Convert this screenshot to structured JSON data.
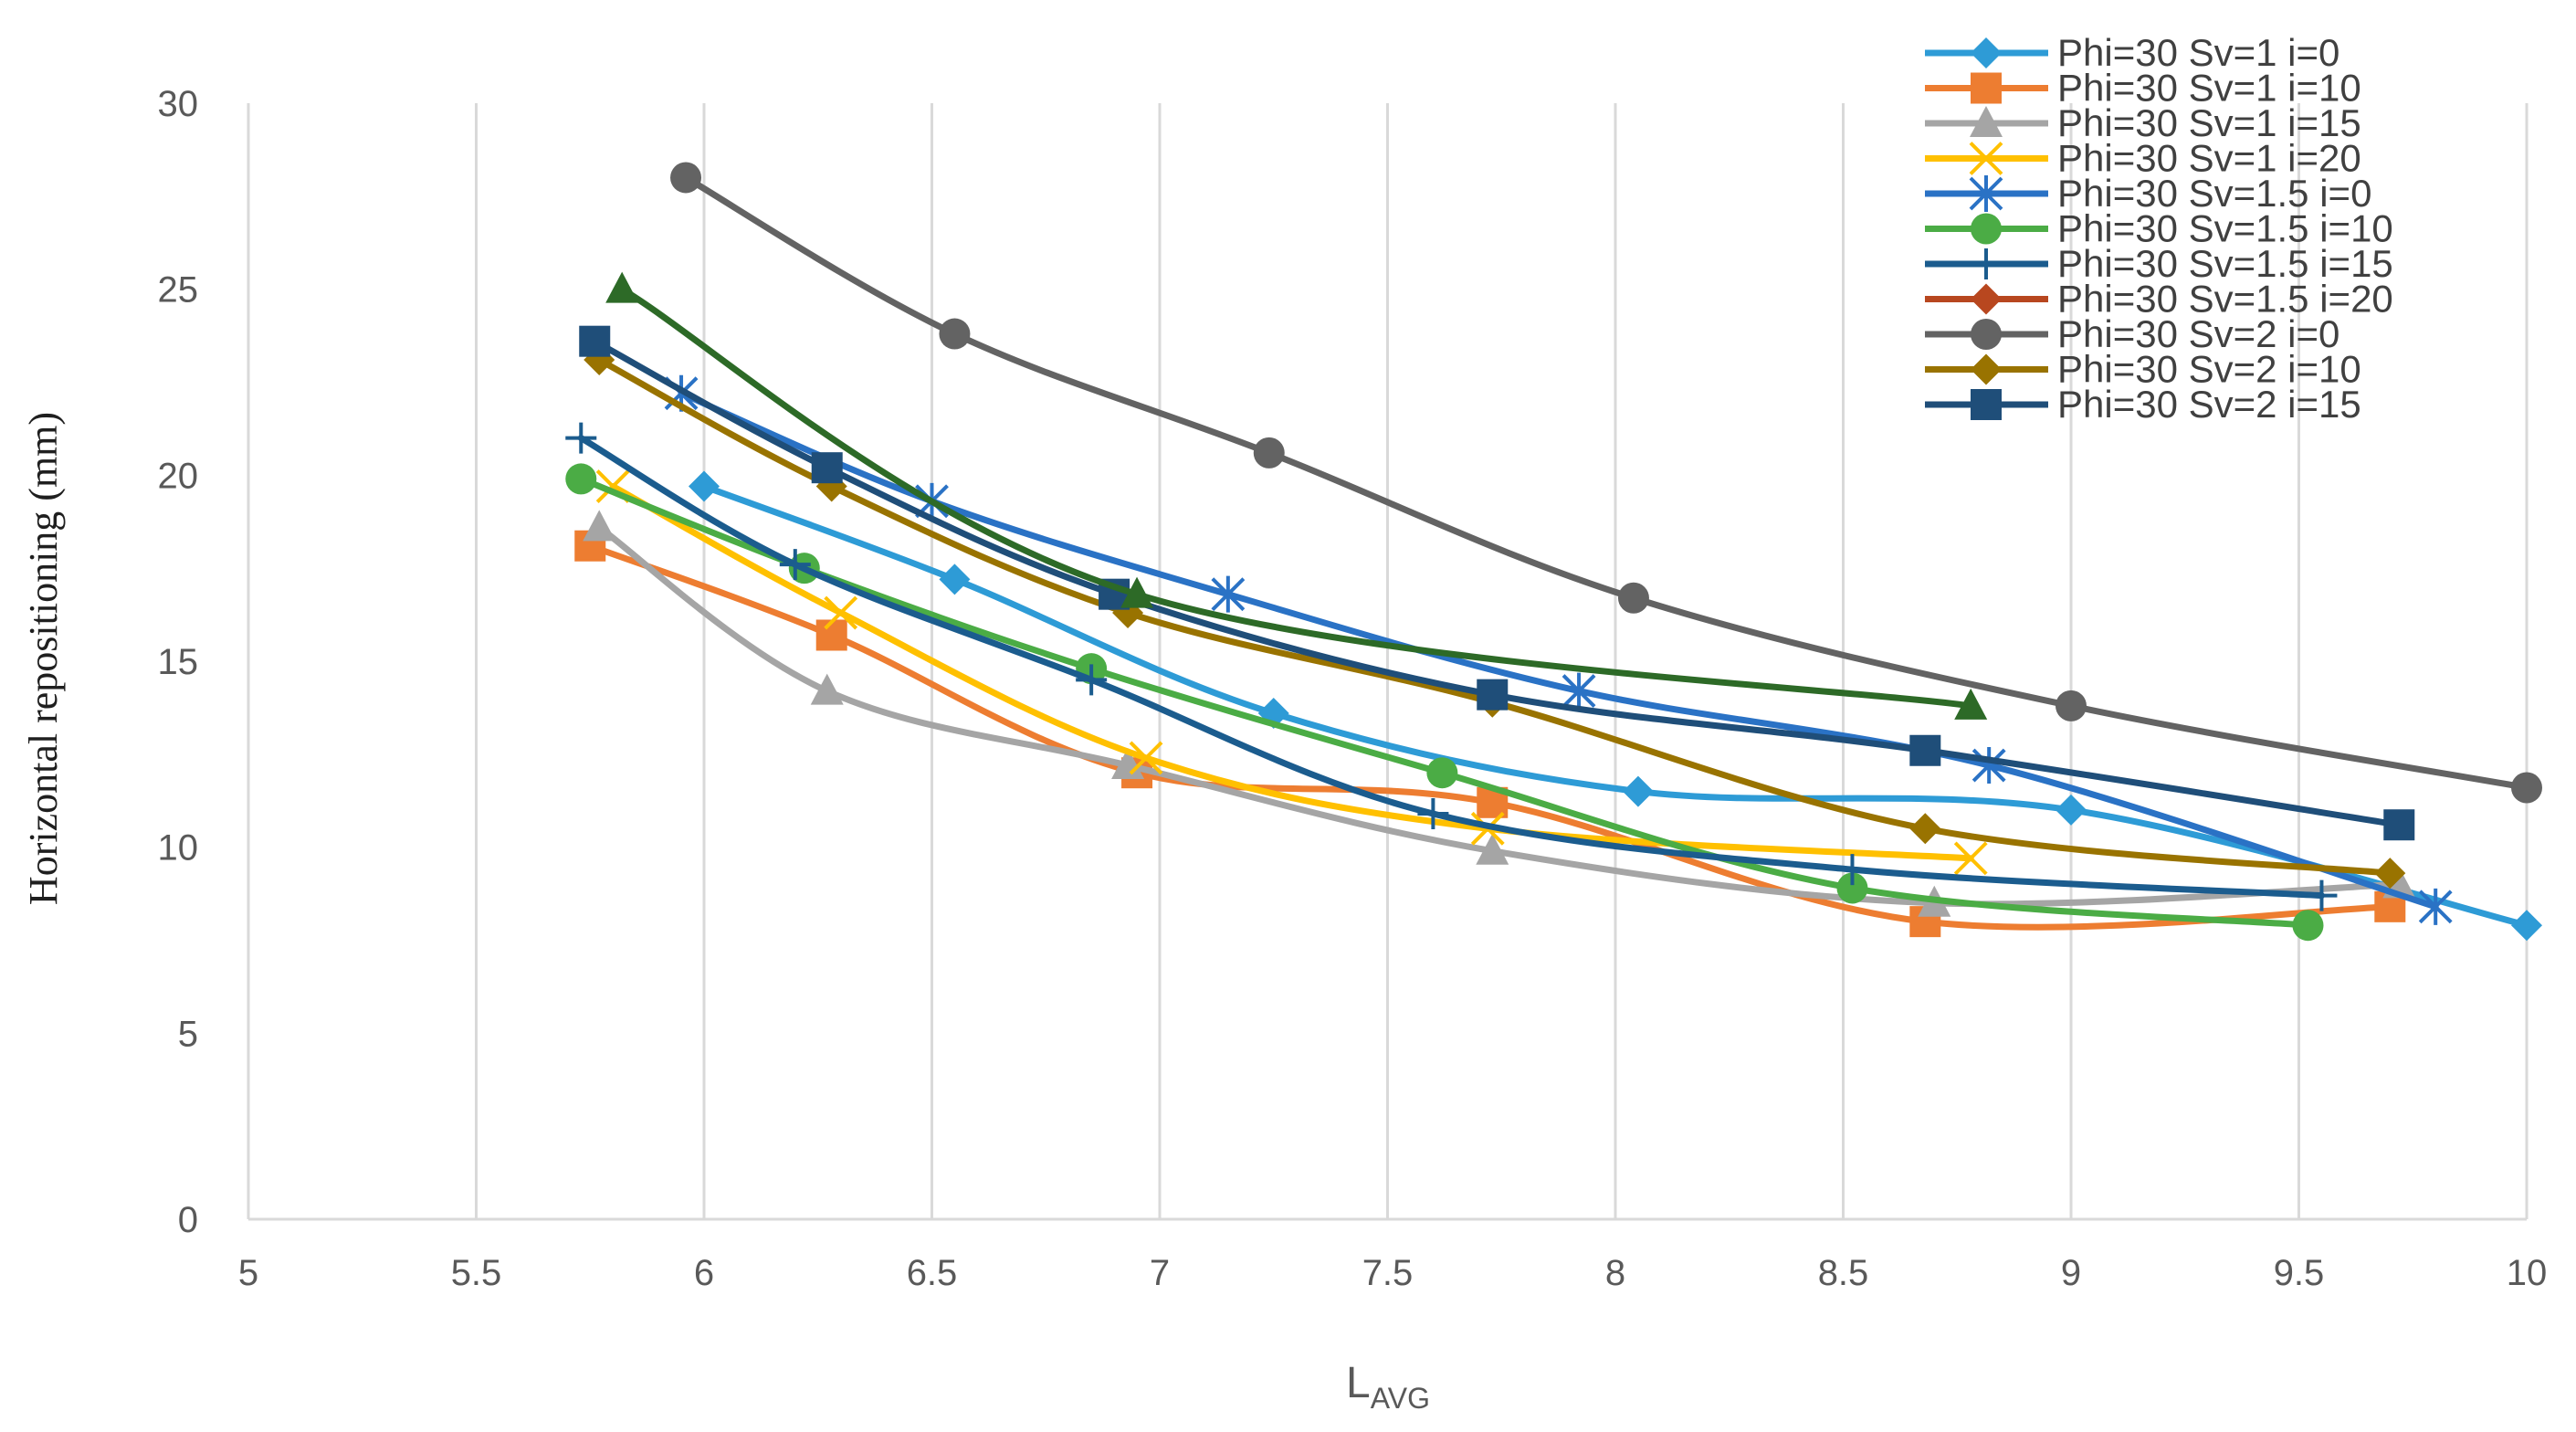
{
  "chart_data": {
    "type": "line",
    "title": "",
    "xlabel_main": "L",
    "xlabel_sub": "AVG",
    "ylabel": "Horizontal repositioning (mm)",
    "xlim": [
      5,
      10
    ],
    "ylim": [
      0,
      30
    ],
    "xticks": [
      "5",
      "5.5",
      "6",
      "6.5",
      "7",
      "7.5",
      "8",
      "8.5",
      "9",
      "9.5",
      "10"
    ],
    "yticks": [
      "0",
      "5",
      "10",
      "15",
      "20",
      "25",
      "30"
    ],
    "grid": "vertical",
    "legend_position": "top-right",
    "series": [
      {
        "name": "Phi=30 Sv=1 i=0",
        "color": "#2e9bd6",
        "marker": "diamond",
        "x": [
          6.0,
          6.55,
          7.25,
          8.05,
          9.0,
          10.0
        ],
        "y": [
          19.7,
          17.2,
          13.6,
          11.5,
          11.0,
          7.9
        ]
      },
      {
        "name": "Phi=30 Sv=1 i=10",
        "color": "#ed7d31",
        "marker": "square",
        "x": [
          5.75,
          6.28,
          6.95,
          7.73,
          8.68,
          9.7
        ],
        "y": [
          18.1,
          15.7,
          12.0,
          11.2,
          8.0,
          8.4
        ]
      },
      {
        "name": "Phi=30 Sv=1 i=15",
        "color": "#a5a5a5",
        "marker": "triangle",
        "x": [
          5.77,
          6.27,
          6.93,
          7.73,
          8.7,
          9.72
        ],
        "y": [
          18.6,
          14.2,
          12.2,
          9.9,
          8.5,
          9.0
        ]
      },
      {
        "name": "Phi=30 Sv=1 i=20",
        "color": "#ffc000",
        "marker": "x",
        "x": [
          5.8,
          6.3,
          6.97,
          7.72,
          8.78
        ],
        "y": [
          19.7,
          16.3,
          12.4,
          10.5,
          9.7
        ]
      },
      {
        "name": "Phi=30 Sv=1.5 i=0",
        "color": "#2a72c5",
        "marker": "star",
        "x": [
          5.95,
          6.5,
          7.15,
          7.92,
          8.82,
          9.8
        ],
        "y": [
          22.2,
          19.3,
          16.8,
          14.2,
          12.2,
          8.4
        ]
      },
      {
        "name": "Phi=30 Sv=1.5 i=10",
        "color": "#4bac45",
        "marker": "circle",
        "x": [
          5.73,
          6.22,
          6.85,
          7.62,
          8.52,
          9.52
        ],
        "y": [
          19.9,
          17.5,
          14.8,
          12.0,
          8.9,
          7.9
        ]
      },
      {
        "name": "Phi=30 Sv=1.5 i=15",
        "color": "#1b5c8e",
        "marker": "plus",
        "x": [
          5.73,
          6.2,
          6.85,
          7.6,
          8.52,
          9.55
        ],
        "y": [
          21.0,
          17.6,
          14.5,
          10.9,
          9.4,
          8.7
        ]
      },
      {
        "name": "Phi=30 Sv=1.5 i=20",
        "color": "#b8471f",
        "marker": "diamond",
        "x": [],
        "y": []
      },
      {
        "name": "Phi=30 Sv=2 i=0",
        "color": "#636363",
        "marker": "circle",
        "x": [
          5.96,
          6.55,
          7.24,
          8.04,
          9.0,
          10.0
        ],
        "y": [
          28.0,
          23.8,
          20.6,
          16.7,
          13.8,
          11.6
        ]
      },
      {
        "name": "Phi=30 Sv=2 i=10",
        "color": "#997300",
        "marker": "diamond",
        "x": [
          5.77,
          6.28,
          6.93,
          7.73,
          8.68,
          9.7
        ],
        "y": [
          23.1,
          19.7,
          16.3,
          13.9,
          10.5,
          9.3
        ]
      },
      {
        "name": "Phi=30 Sv=2 i=15",
        "color": "#1f4e79",
        "marker": "square",
        "x": [
          5.76,
          6.27,
          6.9,
          7.73,
          8.68,
          9.72
        ],
        "y": [
          23.6,
          20.2,
          16.8,
          14.1,
          12.6,
          10.6
        ]
      },
      {
        "name": "",
        "color": "#2d6a27",
        "marker": "triangle",
        "x": [
          5.82,
          6.95,
          8.78
        ],
        "y": [
          25.0,
          16.8,
          13.8
        ],
        "legend": false
      }
    ]
  }
}
